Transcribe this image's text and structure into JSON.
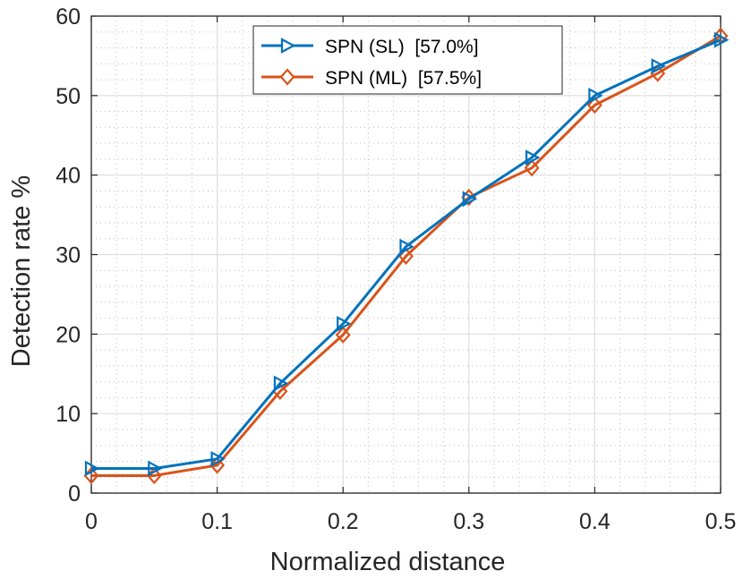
{
  "chart_data": {
    "type": "line",
    "title": "",
    "xlabel": "Normalized distance",
    "ylabel": "Detection rate %",
    "xlim": [
      0,
      0.5
    ],
    "ylim": [
      0,
      60
    ],
    "x_ticks": [
      0,
      0.1,
      0.2,
      0.3,
      0.4,
      0.5
    ],
    "x_tick_labels": [
      "0",
      "0.1",
      "0.2",
      "0.3",
      "0.4",
      "0.5"
    ],
    "y_ticks": [
      0,
      10,
      20,
      30,
      40,
      50,
      60
    ],
    "y_tick_labels": [
      "0",
      "10",
      "20",
      "30",
      "40",
      "50",
      "60"
    ],
    "grid": true,
    "minor_grid": true,
    "legend_position": "top-center",
    "x": [
      0,
      0.05,
      0.1,
      0.15,
      0.2,
      0.25,
      0.3,
      0.35,
      0.4,
      0.45,
      0.5
    ],
    "series": [
      {
        "name": "SPN (SL)  [57.0%]",
        "color": "#0072BD",
        "marker": "triangle-right",
        "values": [
          3.1,
          3.1,
          4.3,
          13.8,
          21.3,
          31.0,
          37.0,
          42.2,
          50.0,
          53.7,
          57.0
        ]
      },
      {
        "name": "SPN (ML)  [57.5%]",
        "color": "#D95319",
        "marker": "diamond",
        "values": [
          2.2,
          2.2,
          3.5,
          12.8,
          19.9,
          29.8,
          37.2,
          40.9,
          48.8,
          52.8,
          57.5
        ]
      }
    ]
  }
}
